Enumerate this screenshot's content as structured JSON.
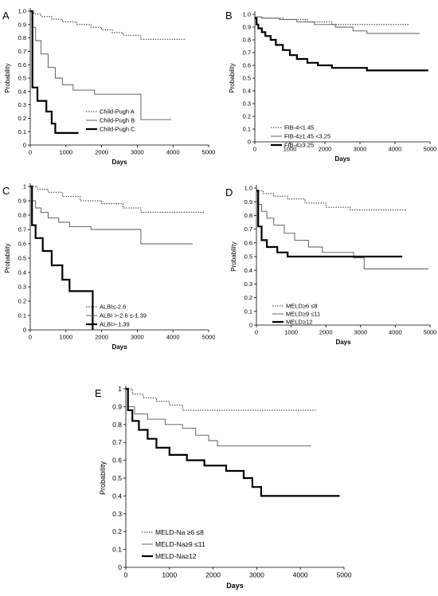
{
  "chart_data": [
    {
      "panel": "A",
      "type": "line",
      "step": true,
      "xlabel": "Days",
      "ylabel": "Probability",
      "xlim": [
        0,
        5000
      ],
      "ylim": [
        0,
        1
      ],
      "xticks": [
        0,
        1000,
        2000,
        3000,
        4000,
        5000
      ],
      "yticks": [
        0,
        0.1,
        0.2,
        0.3,
        0.4,
        0.5,
        0.6,
        0.7,
        0.8,
        0.9,
        1
      ],
      "ytick_labels": [
        "0",
        "0.1",
        "0.2",
        "0.3",
        "0.4",
        "0.5",
        "0.6",
        "0.7",
        "0.8",
        "0.9",
        "1.0"
      ],
      "legend_position": "bottom-right",
      "series": [
        {
          "name": "Child-Pugh A",
          "style": "dotted",
          "x": [
            0,
            100,
            300,
            600,
            900,
            1300,
            1700,
            2000,
            2300,
            2600,
            3100,
            4350
          ],
          "y": [
            1.0,
            0.98,
            0.96,
            0.94,
            0.92,
            0.9,
            0.88,
            0.86,
            0.84,
            0.82,
            0.79,
            0.79
          ]
        },
        {
          "name": "Child-Pugh B",
          "style": "thin",
          "x": [
            0,
            50,
            150,
            300,
            500,
            700,
            900,
            1200,
            1800,
            3100,
            3950
          ],
          "y": [
            1.0,
            0.88,
            0.78,
            0.68,
            0.58,
            0.5,
            0.45,
            0.41,
            0.38,
            0.19,
            0.19
          ]
        },
        {
          "name": "Child-Pugh C",
          "style": "bold",
          "x": [
            0,
            60,
            200,
            450,
            600,
            700,
            1350
          ],
          "y": [
            1.0,
            0.43,
            0.33,
            0.25,
            0.16,
            0.09,
            0.09
          ]
        }
      ]
    },
    {
      "panel": "B",
      "type": "line",
      "step": true,
      "xlabel": "Days",
      "ylabel": "Probability",
      "xlim": [
        0,
        5000
      ],
      "ylim": [
        0,
        1
      ],
      "xticks": [
        0,
        1000,
        2000,
        3000,
        4000,
        5000
      ],
      "yticks": [
        0,
        0.1,
        0.2,
        0.3,
        0.4,
        0.5,
        0.6,
        0.7,
        0.8,
        0.9,
        1
      ],
      "ytick_labels": [
        "0",
        "0.1",
        "0.2",
        "0.3",
        "0.4",
        "0.5",
        "0.6",
        "0.7",
        "0.8",
        "0.9",
        "1.0"
      ],
      "legend_position": "bottom-left",
      "series": [
        {
          "name": "FIB-4<1.45",
          "style": "dotted",
          "x": [
            0,
            200,
            800,
            1500,
            2200,
            4400
          ],
          "y": [
            0.98,
            0.97,
            0.96,
            0.94,
            0.92,
            0.92
          ]
        },
        {
          "name": "FIB-4≥1.45 <3.25",
          "style": "thin",
          "x": [
            0,
            200,
            700,
            1200,
            1700,
            2300,
            2800,
            3200,
            4700
          ],
          "y": [
            0.98,
            0.97,
            0.96,
            0.94,
            0.92,
            0.9,
            0.87,
            0.85,
            0.85
          ]
        },
        {
          "name": "FIB-4≥3.25",
          "style": "bold",
          "x": [
            0,
            50,
            100,
            200,
            300,
            450,
            600,
            800,
            1000,
            1200,
            1500,
            1800,
            2200,
            3200,
            4950
          ],
          "y": [
            0.97,
            0.92,
            0.89,
            0.86,
            0.83,
            0.8,
            0.76,
            0.72,
            0.68,
            0.65,
            0.62,
            0.6,
            0.58,
            0.56,
            0.56
          ]
        }
      ]
    },
    {
      "panel": "C",
      "type": "line",
      "step": true,
      "xlabel": "Days",
      "ylabel": "Probability",
      "xlim": [
        0,
        5000
      ],
      "ylim": [
        0,
        1
      ],
      "xticks": [
        0,
        1000,
        2000,
        3000,
        4000,
        5000
      ],
      "yticks": [
        0,
        0.1,
        0.2,
        0.3,
        0.4,
        0.5,
        0.6,
        0.7,
        0.8,
        0.9,
        1
      ],
      "ytick_labels": [
        "0",
        "0.1",
        "0.2",
        "0.3",
        "0.4",
        "0.5",
        "0.6",
        "0.7",
        "0.8",
        "0.9",
        "1"
      ],
      "legend_position": "bottom-right",
      "series": [
        {
          "name": "ALBI≤-2.6",
          "style": "dotted",
          "x": [
            0,
            200,
            500,
            900,
            1400,
            2000,
            2600,
            3100,
            4900
          ],
          "y": [
            1.0,
            0.98,
            0.96,
            0.93,
            0.9,
            0.88,
            0.85,
            0.82,
            0.82
          ]
        },
        {
          "name": "ALBI >-2.6 ≤-1.39",
          "style": "thin",
          "x": [
            0,
            50,
            150,
            300,
            500,
            800,
            1100,
            1700,
            3100,
            4550
          ],
          "y": [
            1.0,
            0.9,
            0.85,
            0.82,
            0.78,
            0.75,
            0.72,
            0.7,
            0.6,
            0.6
          ]
        },
        {
          "name": "ALBI>-1.39",
          "style": "bold",
          "x": [
            0,
            50,
            150,
            350,
            600,
            900,
            1100,
            1750,
            1750
          ],
          "y": [
            1.0,
            0.73,
            0.64,
            0.55,
            0.45,
            0.35,
            0.27,
            0.27,
            0.0
          ]
        }
      ]
    },
    {
      "panel": "D",
      "type": "line",
      "step": true,
      "xlabel": "Days",
      "ylabel": "Probability",
      "xlim": [
        0,
        5000
      ],
      "ylim": [
        0,
        1
      ],
      "xticks": [
        0,
        1000,
        2000,
        3000,
        4000,
        5000
      ],
      "yticks": [
        0,
        0.1,
        0.2,
        0.3,
        0.4,
        0.5,
        0.6,
        0.7,
        0.8,
        0.9,
        1
      ],
      "ytick_labels": [
        "0",
        "0.1",
        "0.2",
        "0.3",
        "0.4",
        "0.5",
        "0.6",
        "0.7",
        "0.8",
        "0.9",
        "1.0"
      ],
      "legend_position": "bottom-left",
      "series": [
        {
          "name": "MELD≥6 ≤8",
          "style": "dotted",
          "x": [
            0,
            200,
            500,
            900,
            1400,
            2000,
            2700,
            4300
          ],
          "y": [
            0.98,
            0.96,
            0.94,
            0.92,
            0.89,
            0.86,
            0.84,
            0.84
          ]
        },
        {
          "name": "MELD≥9 ≤11",
          "style": "thin",
          "x": [
            0,
            50,
            150,
            300,
            500,
            800,
            1100,
            1500,
            1900,
            2800,
            3100,
            4950
          ],
          "y": [
            0.98,
            0.88,
            0.83,
            0.78,
            0.73,
            0.67,
            0.62,
            0.57,
            0.53,
            0.49,
            0.41,
            0.41
          ]
        },
        {
          "name": "MELD≥12",
          "style": "bold",
          "x": [
            0,
            50,
            150,
            300,
            600,
            900,
            4200
          ],
          "y": [
            0.98,
            0.72,
            0.62,
            0.57,
            0.53,
            0.5,
            0.5
          ]
        }
      ]
    },
    {
      "panel": "E",
      "type": "line",
      "step": true,
      "xlabel": "Days",
      "ylabel": "Probability",
      "xlim": [
        0,
        5000
      ],
      "ylim": [
        0,
        1
      ],
      "xticks": [
        0,
        1000,
        2000,
        3000,
        4000,
        5000
      ],
      "yticks": [
        0,
        0.1,
        0.2,
        0.3,
        0.4,
        0.5,
        0.6,
        0.7,
        0.8,
        0.9,
        1
      ],
      "ytick_labels": [
        "0",
        "0.1",
        "0.2",
        "0.3",
        "0.4",
        "0.5",
        "0.6",
        "0.7",
        "0.8",
        "0.9",
        "1"
      ],
      "legend_position": "bottom-left",
      "series": [
        {
          "name": "MELD-Na ≥6 ≤8",
          "style": "dotted",
          "x": [
            0,
            150,
            400,
            700,
            1000,
            1300,
            4350
          ],
          "y": [
            1.0,
            0.97,
            0.95,
            0.93,
            0.91,
            0.88,
            0.88
          ]
        },
        {
          "name": "MELD-Na≥9 ≤11",
          "style": "thin",
          "x": [
            0,
            50,
            200,
            500,
            900,
            1300,
            1600,
            1900,
            2100,
            4250
          ],
          "y": [
            1.0,
            0.9,
            0.86,
            0.83,
            0.8,
            0.78,
            0.74,
            0.71,
            0.68,
            0.68
          ]
        },
        {
          "name": "MELD-Na≥12",
          "style": "bold",
          "x": [
            0,
            50,
            150,
            300,
            500,
            700,
            1000,
            1400,
            1800,
            2300,
            2700,
            2900,
            3100,
            4900
          ],
          "y": [
            1.0,
            0.88,
            0.82,
            0.77,
            0.72,
            0.67,
            0.63,
            0.6,
            0.57,
            0.54,
            0.5,
            0.45,
            0.4,
            0.4
          ]
        }
      ]
    }
  ]
}
